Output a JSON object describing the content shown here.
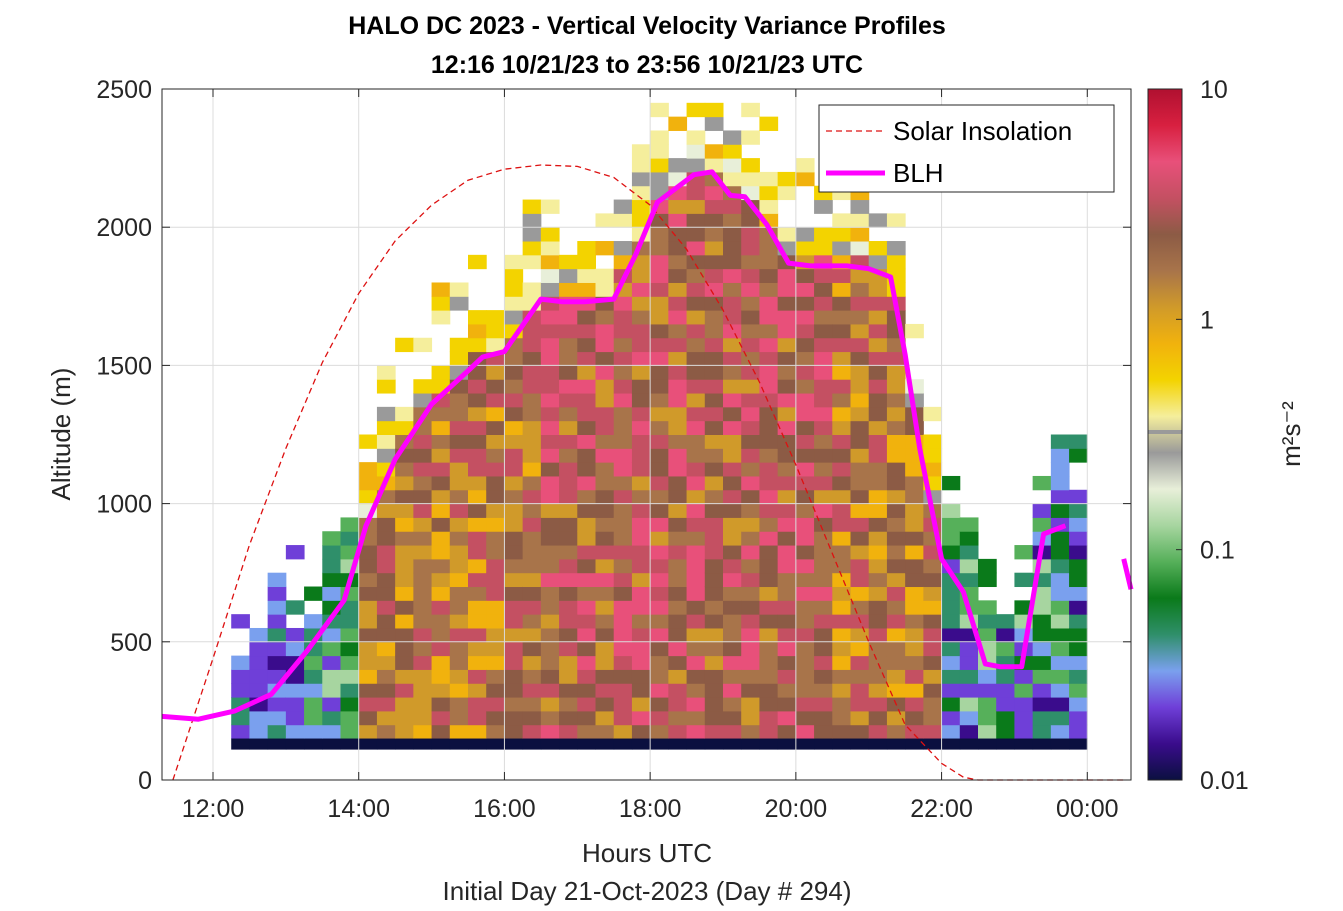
{
  "chart_data": {
    "type": "heatmap",
    "title": "HALO DC 2023 - Vertical Velocity Variance Profiles",
    "subtitle": "12:16 10/21/23 to 23:56 10/21/23  UTC",
    "xlabel": "Hours UTC",
    "xlabel2": "Initial Day 21-Oct-2023 (Day # 294)",
    "ylabel": "Altitude (m)",
    "xlim_hours": [
      11.3,
      24.6
    ],
    "ylim": [
      0,
      2500
    ],
    "x_ticks": [
      12,
      14,
      16,
      18,
      20,
      22,
      24
    ],
    "x_tick_labels": [
      "12:00",
      "14:00",
      "16:00",
      "18:00",
      "20:00",
      "22:00",
      "00:00"
    ],
    "y_ticks": [
      0,
      500,
      1000,
      1500,
      2000,
      2500
    ],
    "y_tick_labels": [
      "0",
      "500",
      "1000",
      "1500",
      "2000",
      "2500"
    ],
    "grid": true,
    "legend_position": "top-right",
    "colorbar": {
      "label": "m²s⁻²",
      "scale": "log",
      "range": [
        0.01,
        10
      ],
      "ticks": [
        0.01,
        0.1,
        1,
        10
      ],
      "tick_labels": [
        "0.01",
        "0.1",
        "1",
        "10"
      ],
      "colors": [
        "#0b1040",
        "#3a0c8c",
        "#6f3fd8",
        "#7aa0ee",
        "#2f8f6a",
        "#0a7a1a",
        "#56b05a",
        "#a7d5a0",
        "#e8efd9",
        "#9a9a9a",
        "#f5ee9c",
        "#f3d300",
        "#f1b20d",
        "#d09a2a",
        "#a8744a",
        "#8c5b45",
        "#c45062",
        "#e8507a",
        "#d82040",
        "#b01030"
      ]
    },
    "series": [
      {
        "name": "Solar Insolation",
        "style": "dashed",
        "color": "#dd1111",
        "x": [
          11.45,
          12.0,
          12.5,
          13.0,
          13.5,
          14.0,
          14.5,
          15.0,
          15.5,
          16.0,
          16.5,
          17.0,
          17.5,
          18.0,
          18.5,
          19.0,
          19.5,
          20.0,
          20.5,
          21.0,
          21.5,
          22.0,
          22.3,
          22.5,
          23.0,
          23.5,
          24.0,
          24.5
        ],
        "y": [
          0,
          440,
          850,
          1200,
          1510,
          1760,
          1950,
          2080,
          2170,
          2210,
          2225,
          2220,
          2180,
          2080,
          1920,
          1700,
          1440,
          1140,
          820,
          500,
          200,
          60,
          10,
          0,
          0,
          0,
          0,
          0
        ]
      },
      {
        "name": "BLH",
        "style": "solid",
        "color": "#ff00ff",
        "x": [
          11.3,
          11.8,
          12.3,
          12.8,
          13.3,
          13.8,
          14.1,
          14.5,
          15.0,
          15.5,
          15.7,
          16.0,
          16.5,
          16.8,
          17.1,
          17.5,
          17.8,
          18.1,
          18.4,
          18.6,
          18.85,
          19.1,
          19.3,
          19.6,
          19.9,
          20.2,
          20.4,
          20.7,
          21.0,
          21.3,
          21.5,
          21.7,
          22.0,
          22.3,
          22.6,
          22.8,
          23.1,
          23.4,
          23.7,
          23.9,
          24.2
        ],
        "y": [
          230,
          220,
          250,
          310,
          470,
          650,
          920,
          1160,
          1360,
          1480,
          1530,
          1550,
          1740,
          1730,
          1730,
          1740,
          1900,
          2090,
          2150,
          2190,
          2200,
          2115,
          2110,
          2010,
          1870,
          1860,
          1860,
          1860,
          1850,
          1820,
          1540,
          1200,
          800,
          680,
          420,
          410,
          410,
          890,
          920,
          null,
          null
        ],
        "x_extra": [
          24.5,
          24.6
        ],
        "y_extra": [
          800,
          690
        ]
      }
    ]
  }
}
